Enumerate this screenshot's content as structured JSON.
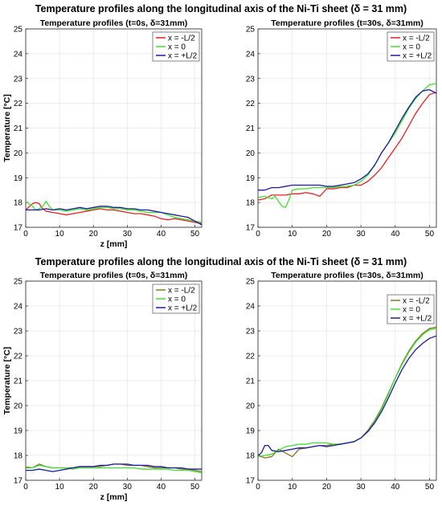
{
  "figure": {
    "titles": [
      "Temperature profiles along the longitudinal axis of the Ni-Ti sheet (δ = 31 mm)",
      "Temperature profiles along the longitudinal axis of the Ni-Ti sheet (δ = 31 mm)"
    ]
  },
  "chart_data": [
    {
      "type": "line",
      "title": "Temperature profiles (t=0s, δ=31mm)",
      "xlabel": "z [mm]",
      "ylabel": "Temperature [°C]",
      "xlim": [
        0,
        52
      ],
      "ylim": [
        17,
        25
      ],
      "xticks": [
        0,
        10,
        20,
        30,
        40,
        50
      ],
      "yticks": [
        17,
        18,
        19,
        20,
        21,
        22,
        23,
        24,
        25
      ],
      "grid": true,
      "legend": "top-right",
      "series": [
        {
          "name": "x = -L/2",
          "color": "#e8211f",
          "x": [
            0,
            2,
            3,
            4,
            5,
            6,
            8,
            10,
            12,
            14,
            16,
            18,
            20,
            22,
            24,
            26,
            28,
            30,
            32,
            34,
            36,
            38,
            40,
            42,
            44,
            46,
            48,
            50,
            52
          ],
          "y": [
            17.7,
            17.95,
            18.0,
            17.95,
            17.75,
            17.65,
            17.6,
            17.55,
            17.5,
            17.55,
            17.6,
            17.65,
            17.7,
            17.75,
            17.7,
            17.7,
            17.65,
            17.6,
            17.55,
            17.55,
            17.5,
            17.45,
            17.35,
            17.3,
            17.35,
            17.3,
            17.25,
            17.2,
            17.15
          ]
        },
        {
          "name": "x = 0",
          "color": "#3ee22e",
          "x": [
            0,
            1,
            2,
            3,
            4,
            5,
            6,
            7,
            8,
            10,
            12,
            14,
            16,
            18,
            20,
            22,
            24,
            26,
            28,
            30,
            32,
            34,
            36,
            38,
            40,
            42,
            44,
            46,
            48,
            50,
            52
          ],
          "y": [
            18.05,
            17.95,
            17.85,
            17.7,
            17.75,
            17.85,
            18.05,
            17.85,
            17.7,
            17.7,
            17.65,
            17.7,
            17.75,
            17.7,
            17.75,
            17.8,
            17.8,
            17.75,
            17.75,
            17.7,
            17.7,
            17.65,
            17.6,
            17.6,
            17.6,
            17.5,
            17.4,
            17.35,
            17.3,
            17.25,
            17.2
          ]
        },
        {
          "name": "x = +L/2",
          "color": "#1a1aa6",
          "x": [
            0,
            2,
            4,
            6,
            8,
            10,
            12,
            14,
            16,
            18,
            20,
            22,
            24,
            26,
            28,
            30,
            32,
            34,
            36,
            38,
            40,
            42,
            44,
            46,
            48,
            50,
            52
          ],
          "y": [
            17.7,
            17.7,
            17.7,
            17.75,
            17.7,
            17.75,
            17.7,
            17.75,
            17.8,
            17.75,
            17.8,
            17.85,
            17.85,
            17.8,
            17.8,
            17.75,
            17.75,
            17.7,
            17.7,
            17.65,
            17.6,
            17.55,
            17.5,
            17.45,
            17.4,
            17.25,
            17.1
          ]
        }
      ]
    },
    {
      "type": "line",
      "title": "Temperature profiles (t=30s, δ=31mm)",
      "xlabel": "",
      "ylabel": "",
      "xlim": [
        0,
        52
      ],
      "ylim": [
        17,
        25
      ],
      "xticks": [
        0,
        10,
        20,
        30,
        40,
        50
      ],
      "yticks": [
        17,
        18,
        19,
        20,
        21,
        22,
        23,
        24,
        25
      ],
      "grid": true,
      "legend": "top-right",
      "series": [
        {
          "name": "x = -L/2",
          "color": "#e8211f",
          "x": [
            0,
            2,
            4,
            6,
            8,
            10,
            12,
            14,
            16,
            18,
            20,
            22,
            24,
            26,
            28,
            30,
            32,
            34,
            36,
            38,
            40,
            42,
            44,
            46,
            48,
            50,
            52
          ],
          "y": [
            18.1,
            18.15,
            18.3,
            18.3,
            18.3,
            18.35,
            18.35,
            18.4,
            18.35,
            18.25,
            18.55,
            18.55,
            18.6,
            18.6,
            18.7,
            18.7,
            18.85,
            19.1,
            19.4,
            19.8,
            20.2,
            20.6,
            21.1,
            21.6,
            22.0,
            22.35,
            22.45
          ]
        },
        {
          "name": "x = 0",
          "color": "#3ee22e",
          "x": [
            0,
            2,
            4,
            5,
            6,
            7,
            8,
            9,
            10,
            12,
            14,
            16,
            18,
            20,
            22,
            24,
            26,
            28,
            30,
            32,
            34,
            36,
            38,
            40,
            42,
            44,
            46,
            48,
            50,
            52
          ],
          "y": [
            18.2,
            18.25,
            18.15,
            18.25,
            18.05,
            17.85,
            17.8,
            18.1,
            18.5,
            18.55,
            18.55,
            18.6,
            18.6,
            18.6,
            18.6,
            18.65,
            18.65,
            18.7,
            18.85,
            19.1,
            19.5,
            20.0,
            20.4,
            20.8,
            21.3,
            21.8,
            22.2,
            22.5,
            22.75,
            22.8
          ]
        },
        {
          "name": "x = +L/2",
          "color": "#1a1aa6",
          "x": [
            0,
            2,
            4,
            6,
            8,
            10,
            12,
            14,
            16,
            18,
            20,
            22,
            24,
            26,
            28,
            30,
            32,
            34,
            36,
            38,
            40,
            42,
            44,
            46,
            48,
            50,
            52
          ],
          "y": [
            18.5,
            18.5,
            18.6,
            18.6,
            18.65,
            18.7,
            18.7,
            18.7,
            18.7,
            18.7,
            18.65,
            18.65,
            18.7,
            18.75,
            18.8,
            18.95,
            19.15,
            19.5,
            20.0,
            20.4,
            20.9,
            21.4,
            21.85,
            22.25,
            22.5,
            22.55,
            22.4
          ]
        }
      ]
    },
    {
      "type": "line",
      "title": "Temperature profiles (t=0s, δ=31mm)",
      "xlabel": "z [mm]",
      "ylabel": "Temperature [°C]",
      "xlim": [
        0,
        52
      ],
      "ylim": [
        17,
        25
      ],
      "xticks": [
        0,
        10,
        20,
        30,
        40,
        50
      ],
      "yticks": [
        17,
        18,
        19,
        20,
        21,
        22,
        23,
        24,
        25
      ],
      "grid": true,
      "legend": "top-right",
      "series": [
        {
          "name": "x = -L/2",
          "color": "#8a7420",
          "x": [
            0,
            2,
            4,
            6,
            8,
            10,
            12,
            14,
            16,
            18,
            20,
            22,
            24,
            26,
            28,
            30,
            32,
            34,
            36,
            38,
            40,
            42,
            44,
            46,
            48,
            50,
            52
          ],
          "y": [
            17.5,
            17.5,
            17.65,
            17.55,
            17.5,
            17.5,
            17.5,
            17.5,
            17.55,
            17.55,
            17.55,
            17.55,
            17.6,
            17.65,
            17.65,
            17.6,
            17.6,
            17.6,
            17.55,
            17.5,
            17.5,
            17.5,
            17.5,
            17.45,
            17.45,
            17.4,
            17.35
          ]
        },
        {
          "name": "x = 0",
          "color": "#3ee22e",
          "x": [
            0,
            2,
            4,
            6,
            8,
            10,
            12,
            14,
            16,
            18,
            20,
            22,
            24,
            26,
            28,
            30,
            32,
            34,
            36,
            38,
            40,
            42,
            44,
            46,
            48,
            50,
            52
          ],
          "y": [
            17.55,
            17.5,
            17.6,
            17.55,
            17.5,
            17.5,
            17.5,
            17.45,
            17.5,
            17.5,
            17.5,
            17.5,
            17.5,
            17.5,
            17.5,
            17.5,
            17.5,
            17.45,
            17.45,
            17.45,
            17.45,
            17.45,
            17.4,
            17.4,
            17.4,
            17.35,
            17.3
          ]
        },
        {
          "name": "x = +L/2",
          "color": "#1a1aa6",
          "x": [
            0,
            2,
            4,
            6,
            8,
            10,
            12,
            14,
            16,
            18,
            20,
            22,
            24,
            26,
            28,
            30,
            32,
            34,
            36,
            38,
            40,
            42,
            44,
            46,
            48,
            50,
            52
          ],
          "y": [
            17.4,
            17.4,
            17.45,
            17.4,
            17.35,
            17.4,
            17.45,
            17.5,
            17.55,
            17.55,
            17.55,
            17.6,
            17.6,
            17.65,
            17.65,
            17.65,
            17.6,
            17.6,
            17.6,
            17.55,
            17.55,
            17.5,
            17.5,
            17.5,
            17.45,
            17.45,
            17.45
          ]
        }
      ]
    },
    {
      "type": "line",
      "title": "Temperature profiles (t=30s, δ=31mm)",
      "xlabel": "",
      "ylabel": "",
      "xlim": [
        0,
        52
      ],
      "ylim": [
        17,
        25
      ],
      "xticks": [
        0,
        10,
        20,
        30,
        40,
        50
      ],
      "yticks": [
        17,
        18,
        19,
        20,
        21,
        22,
        23,
        24,
        25
      ],
      "grid": true,
      "legend": "right",
      "series": [
        {
          "name": "x = -L/2",
          "color": "#8a7420",
          "x": [
            0,
            2,
            4,
            6,
            8,
            10,
            12,
            14,
            16,
            18,
            20,
            22,
            24,
            26,
            28,
            30,
            32,
            34,
            36,
            38,
            40,
            42,
            44,
            46,
            48,
            50,
            52
          ],
          "y": [
            18.0,
            17.9,
            17.95,
            18.25,
            18.1,
            17.95,
            18.25,
            18.3,
            18.35,
            18.4,
            18.4,
            18.45,
            18.45,
            18.5,
            18.55,
            18.7,
            19.0,
            19.4,
            19.9,
            20.5,
            21.1,
            21.7,
            22.2,
            22.6,
            22.9,
            23.1,
            23.15
          ]
        },
        {
          "name": "x = 0",
          "color": "#3ee22e",
          "x": [
            0,
            2,
            4,
            6,
            8,
            10,
            12,
            14,
            16,
            18,
            20,
            22,
            24,
            26,
            28,
            30,
            32,
            34,
            36,
            38,
            40,
            42,
            44,
            46,
            48,
            50,
            52
          ],
          "y": [
            17.95,
            18.0,
            18.05,
            18.2,
            18.35,
            18.4,
            18.45,
            18.45,
            18.5,
            18.5,
            18.5,
            18.45,
            18.45,
            18.5,
            18.55,
            18.7,
            18.95,
            19.35,
            19.85,
            20.45,
            21.1,
            21.65,
            22.15,
            22.55,
            22.85,
            23.05,
            23.1
          ]
        },
        {
          "name": "x = +L/2",
          "color": "#1a1aa6",
          "x": [
            0,
            1,
            2,
            3,
            4,
            6,
            8,
            10,
            12,
            14,
            16,
            18,
            20,
            22,
            24,
            26,
            28,
            30,
            32,
            34,
            36,
            38,
            40,
            42,
            44,
            46,
            48,
            50,
            52
          ],
          "y": [
            18.0,
            18.1,
            18.4,
            18.4,
            18.2,
            18.15,
            18.2,
            18.25,
            18.3,
            18.3,
            18.35,
            18.4,
            18.35,
            18.4,
            18.45,
            18.5,
            18.55,
            18.7,
            18.95,
            19.3,
            19.75,
            20.3,
            20.9,
            21.45,
            21.9,
            22.25,
            22.5,
            22.7,
            22.8
          ]
        }
      ]
    }
  ]
}
